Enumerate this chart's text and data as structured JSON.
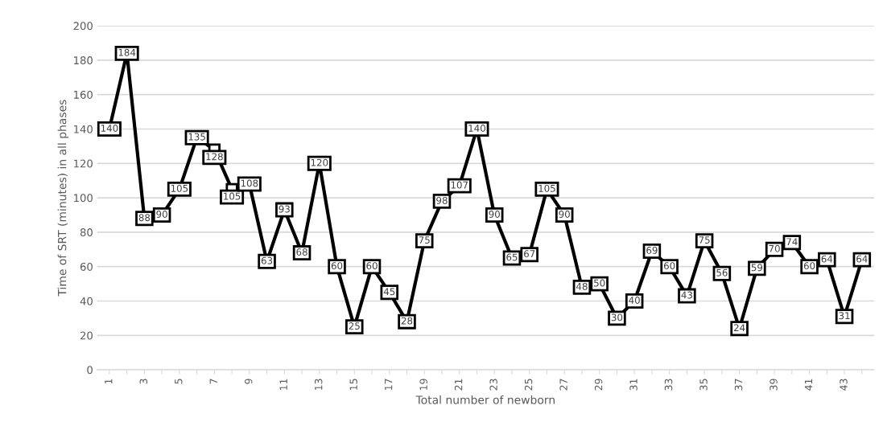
{
  "chart_data": {
    "type": "line",
    "xlabel": "Total number of newborn",
    "ylabel": "Time of SRT (minutes) in all phases",
    "categories": [
      "1",
      null,
      "3",
      null,
      "5",
      null,
      "7",
      null,
      "9",
      null,
      "11",
      null,
      "13",
      null,
      "15",
      null,
      "17",
      null,
      "19",
      null,
      "21",
      null,
      "23",
      null,
      "25",
      null,
      "27",
      null,
      "29",
      null,
      "31",
      null,
      "33",
      null,
      "35",
      null,
      "37",
      null,
      "39",
      null,
      "41",
      null,
      "43",
      null
    ],
    "series": [
      {
        "color": "#000000",
        "values": [
          140,
          184,
          88,
          90,
          105,
          135,
          128,
          105,
          108,
          63,
          93,
          68,
          120,
          60,
          25,
          60,
          45,
          28,
          75,
          98,
          107,
          140,
          90,
          65,
          67,
          105,
          90,
          48,
          50,
          30,
          40,
          69,
          60,
          43,
          75,
          56,
          24,
          59,
          70,
          74,
          60,
          64,
          31,
          64
        ]
      }
    ],
    "ylim": [
      0,
      200
    ],
    "yticks": [
      0,
      20,
      40,
      60,
      80,
      100,
      120,
      140,
      160,
      180,
      200
    ],
    "grid": "y",
    "data_labels": true,
    "marker": "square",
    "line_style": "solid",
    "legend": false
  }
}
